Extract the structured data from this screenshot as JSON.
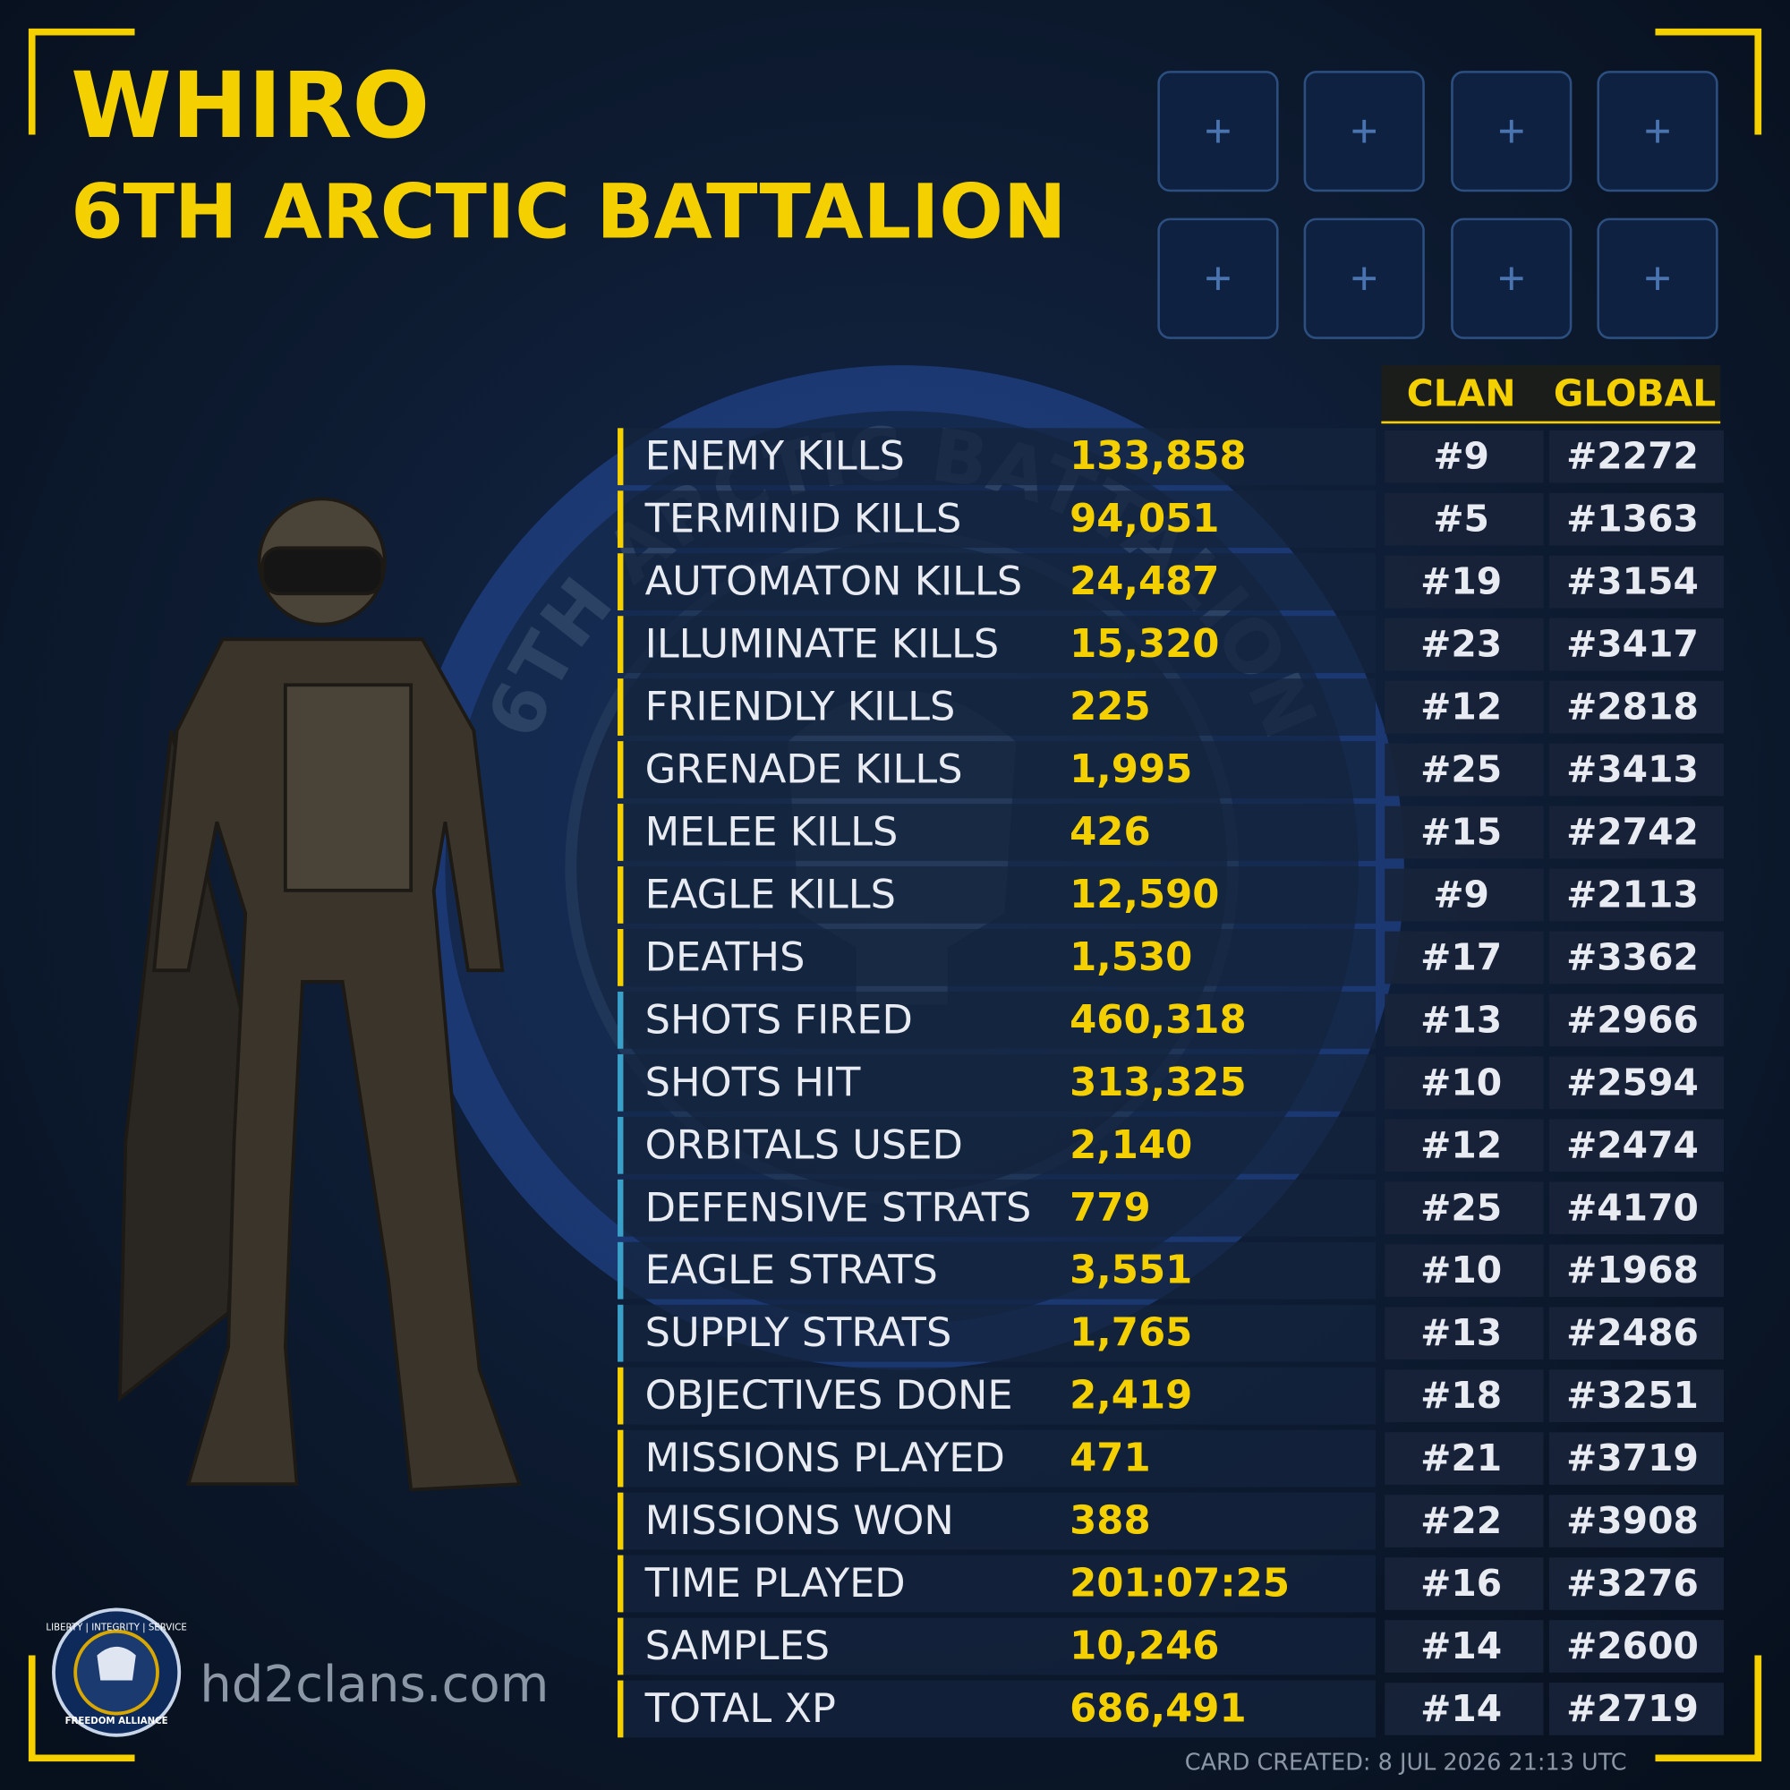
{
  "header": {
    "name": "WHIRO",
    "clan": "6TH ARCTIC BATTALION"
  },
  "emblem": {
    "text": "6TH ARCTIC BATTALION"
  },
  "table": {
    "columns": [
      "CLAN",
      "GLOBAL"
    ],
    "rows": [
      {
        "label": "ENEMY KILLS",
        "value": "133,858",
        "clan": "#9",
        "global": "#2272",
        "accent": "#f5d000"
      },
      {
        "label": "TERMINID KILLS",
        "value": "94,051",
        "clan": "#5",
        "global": "#1363",
        "accent": "#f5d000"
      },
      {
        "label": "AUTOMATON KILLS",
        "value": "24,487",
        "clan": "#19",
        "global": "#3154",
        "accent": "#f5d000"
      },
      {
        "label": "ILLUMINATE KILLS",
        "value": "15,320",
        "clan": "#23",
        "global": "#3417",
        "accent": "#f5d000"
      },
      {
        "label": "FRIENDLY KILLS",
        "value": "225",
        "clan": "#12",
        "global": "#2818",
        "accent": "#f5d000"
      },
      {
        "label": "GRENADE KILLS",
        "value": "1,995",
        "clan": "#25",
        "global": "#3413",
        "accent": "#f5d000"
      },
      {
        "label": "MELEE KILLS",
        "value": "426",
        "clan": "#15",
        "global": "#2742",
        "accent": "#f5d000"
      },
      {
        "label": "EAGLE KILLS",
        "value": "12,590",
        "clan": "#9",
        "global": "#2113",
        "accent": "#f5d000"
      },
      {
        "label": "DEATHS",
        "value": "1,530",
        "clan": "#17",
        "global": "#3362",
        "accent": "#f5d000"
      },
      {
        "label": "SHOTS FIRED",
        "value": "460,318",
        "clan": "#13",
        "global": "#2966",
        "accent": "#3aa0c8"
      },
      {
        "label": "SHOTS HIT",
        "value": "313,325",
        "clan": "#10",
        "global": "#2594",
        "accent": "#3aa0c8"
      },
      {
        "label": "ORBITALS USED",
        "value": "2,140",
        "clan": "#12",
        "global": "#2474",
        "accent": "#3aa0c8"
      },
      {
        "label": "DEFENSIVE STRATS",
        "value": "779",
        "clan": "#25",
        "global": "#4170",
        "accent": "#3aa0c8"
      },
      {
        "label": "EAGLE STRATS",
        "value": "3,551",
        "clan": "#10",
        "global": "#1968",
        "accent": "#3aa0c8"
      },
      {
        "label": "SUPPLY STRATS",
        "value": "1,765",
        "clan": "#13",
        "global": "#2486",
        "accent": "#3aa0c8"
      },
      {
        "label": "OBJECTIVES DONE",
        "value": "2,419",
        "clan": "#18",
        "global": "#3251",
        "accent": "#f5d000"
      },
      {
        "label": "MISSIONS PLAYED",
        "value": "471",
        "clan": "#21",
        "global": "#3719",
        "accent": "#f5d000"
      },
      {
        "label": "MISSIONS WON",
        "value": "388",
        "clan": "#22",
        "global": "#3908",
        "accent": "#f5d000"
      },
      {
        "label": "TIME PLAYED",
        "value": "201:07:25",
        "clan": "#16",
        "global": "#3276",
        "accent": "#f5d000"
      },
      {
        "label": "SAMPLES",
        "value": "10,246",
        "clan": "#14",
        "global": "#2600",
        "accent": "#f5d000"
      },
      {
        "label": "TOTAL XP",
        "value": "686,491",
        "clan": "#14",
        "global": "#2719",
        "accent": "#f5d000"
      }
    ]
  },
  "logo": {
    "top": "LIBERTY | INTEGRITY | SERVICE",
    "bottom": "FREEDOM ALLIANCE"
  },
  "footer": {
    "site": "hd2clans.com",
    "created": "CARD CREATED: 8 JUL 2026 21:13 UTC"
  }
}
